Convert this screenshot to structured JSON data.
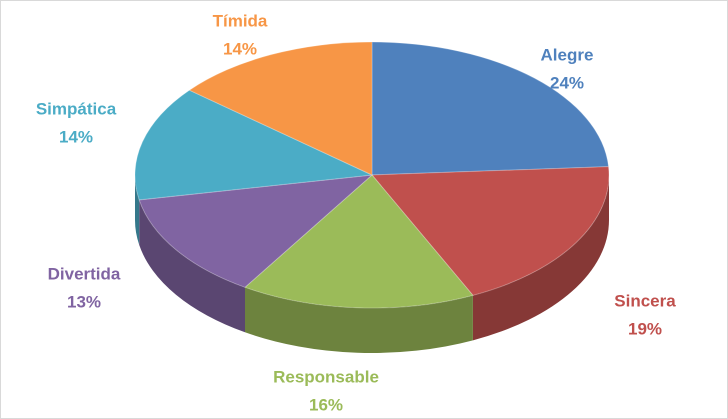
{
  "chart_data": {
    "type": "pie3d",
    "categories": [
      "Alegre",
      "Sincera",
      "Responsable",
      "Divertida",
      "Simpática",
      "Tímida"
    ],
    "values": [
      24,
      19,
      16,
      13,
      14,
      14
    ],
    "value_labels": [
      "24%",
      "19%",
      "16%",
      "13%",
      "14%",
      "14%"
    ],
    "colors": [
      "#4f81bd",
      "#c0504d",
      "#9bbb59",
      "#8064a2",
      "#4bacc6",
      "#f79646"
    ]
  }
}
